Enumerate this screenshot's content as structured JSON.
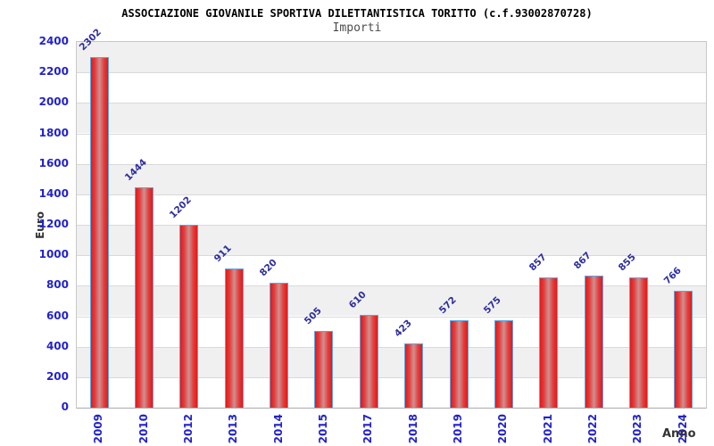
{
  "chart_data": {
    "type": "bar",
    "title": "ASSOCIAZIONE GIOVANILE SPORTIVA DILETTANTISTICA TORITTO (c.f.93002870728)",
    "subtitle": "Importi",
    "xlabel": "Anno",
    "ylabel": "Euro",
    "categories": [
      "2009",
      "2010",
      "2012",
      "2013",
      "2014",
      "2015",
      "2017",
      "2018",
      "2019",
      "2020",
      "2021",
      "2022",
      "2023",
      "2024"
    ],
    "values": [
      2302,
      1444,
      1202,
      911,
      820,
      505,
      610,
      423,
      572,
      575,
      857,
      867,
      855,
      766
    ],
    "value_labels": [
      "2302",
      "1444",
      "1202",
      "911",
      "820",
      "505",
      "610",
      "423",
      "572",
      "575",
      "857",
      "867",
      "855",
      "766"
    ],
    "ylim": [
      0,
      2400
    ],
    "yticks": [
      0,
      200,
      400,
      600,
      800,
      1000,
      1200,
      1400,
      1600,
      1800,
      2000,
      2200,
      2400
    ],
    "grid": "horizontal gridlines every 200 with alternating gray/white bands",
    "legend": "none",
    "colors": {
      "bar_fill_edge": "#e81616",
      "bar_fill_middle": "#d09090",
      "bar_border": "#58a8e8",
      "tick_label": "#2222cc",
      "value_label": "#2e2e9e",
      "title": "#000000",
      "subtitle": "#4d4d4d",
      "axis_title": "#333333",
      "band_gray": "#f0f0f0",
      "band_white": "#ffffff",
      "grid_line": "#d9d9d9",
      "plot_border": "#c8c8c8",
      "axis_line": "#aaaaaa",
      "background": "#ffffff"
    }
  }
}
